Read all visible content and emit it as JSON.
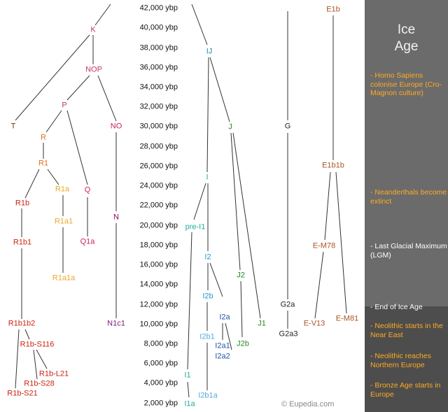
{
  "years": [
    "42,000 ybp",
    "40,000 ybp",
    "38,000 ybp",
    "36,000 ybp",
    "34,000 ybp",
    "32,000 ybp",
    "30,000 ybp",
    "28,000 ybp",
    "26,000 ybp",
    "24,000 ybp",
    "22,000 ybp",
    "20,000 ybp",
    "18,000 ybp",
    "16,000 ybp",
    "14,000 ybp",
    "12,000 ybp",
    "10,000 ybp",
    "8,000 ybp",
    "6,000 ybp",
    "4,000 ybp",
    "2,000 ybp"
  ],
  "colors": {
    "K": "#c0395c",
    "T": "#7a2e0e",
    "R": "#e0701e",
    "Rx": "#cc2211",
    "Ra": "#e8a92a",
    "Q": "#cc2255",
    "N": "#990055",
    "N1c1": "#7a1a7a",
    "IJ": "#2288aa",
    "I": "#22aa99",
    "I2": "#2299cc",
    "I2b1": "#55aadd",
    "I2a": "#2255aa",
    "J": "#228822",
    "G": "#222222",
    "E": "#aa5522",
    "panel_title": "#f2f2f2",
    "event_orange": "#ffaa22",
    "event_white": "#ffffff"
  },
  "haplogroups": {
    "K": "K",
    "NOP": "NOP",
    "P": "P",
    "T": "T",
    "NO": "NO",
    "R": "R",
    "R1": "R1",
    "R1a": "R1a",
    "Q": "Q",
    "R1b": "R1b",
    "N": "N",
    "R1a1": "R1a1",
    "R1b1": "R1b1",
    "Q1a": "Q1a",
    "R1a1a": "R1a1a",
    "N1c1": "N1c1",
    "R1b1b2": "R1b1b2",
    "R1bS116": "R1b-S116",
    "R1bL21": "R1b-L21",
    "R1bS28": "R1b-S28",
    "R1bS21": "R1b-S21",
    "IJ": "IJ",
    "J": "J",
    "I": "I",
    "preI1": "pre-I1",
    "I2": "I2",
    "J2": "J2",
    "I2b": "I2b",
    "I2a": "I2a",
    "J1": "J1",
    "I2b1": "I2b1",
    "I2a1": "I2a1",
    "J2b": "J2b",
    "I2a2": "I2a2",
    "I1": "I1",
    "I2b1a": "I2b1a",
    "I1a": "I1a",
    "G": "G",
    "G2a": "G2a",
    "G2a3": "G2a3",
    "E1b": "E1b",
    "E1b1b": "E1b1b",
    "EM78": "E-M78",
    "EV13": "E-V13",
    "EM81": "E-M81"
  },
  "panel": {
    "title_line1": "Ice",
    "title_line2": "Age",
    "events": [
      "- Homo Sapiens colonise Europe (Cro-Magnon culture)",
      "- Neanderthals become extinct",
      "- Last Glacial Maximum (LGM)",
      "- End of Ice Age",
      "- Neolithic starts in the Near East",
      "- Neolithic reaches Northern Europe",
      "- Bronze Age starts in Europe"
    ]
  },
  "credit": "© Eupedia.com"
}
